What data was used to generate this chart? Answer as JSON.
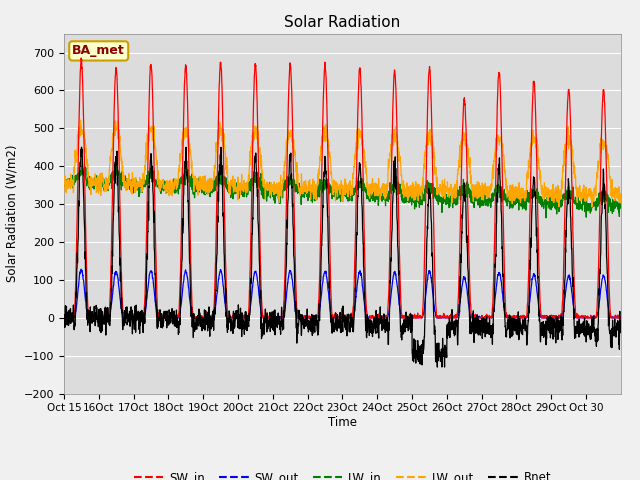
{
  "title": "Solar Radiation",
  "ylabel": "Solar Radiation (W/m2)",
  "xlabel": "Time",
  "ylim": [
    -200,
    750
  ],
  "yticks": [
    -200,
    -100,
    0,
    100,
    200,
    300,
    400,
    500,
    600,
    700
  ],
  "n_days": 16,
  "colors": {
    "SW_in": "red",
    "SW_out": "blue",
    "LW_in": "green",
    "LW_out": "orange",
    "Rnet": "black"
  },
  "legend_label": "BA_met",
  "fig_bg": "#f0f0f0",
  "ax_bg": "#dcdcdc",
  "grid_color": "#ffffff",
  "sw_in_peaks": [
    680,
    660,
    670,
    665,
    672,
    668,
    670,
    665,
    660,
    650,
    660,
    575,
    650,
    625,
    605,
    600
  ],
  "xtick_labels": [
    "Oct 15",
    "16Oct",
    "17Oct",
    "18Oct",
    "19Oct",
    "20Oct",
    "21Oct",
    "22Oct",
    "23Oct",
    "24Oct",
    "25Oct",
    "26Oct",
    "27Oct",
    "28Oct",
    "29Oct",
    "Oct 30"
  ]
}
